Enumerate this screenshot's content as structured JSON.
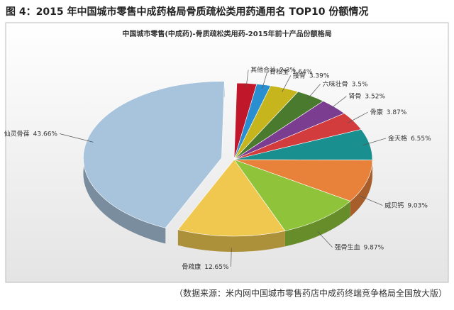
{
  "heading": "图 4：2015 年中国城市零售中成药格局骨质疏松类用药通用名 TOP10 份额情况",
  "source": "（数据来源：米内网中国城市零售药店中成药终端竞争格局全国放大版）",
  "chart_data": {
    "type": "pie",
    "title": "中国城市零售(中成药)-骨质疏松类用药-2015年前十产品份额格局",
    "categories": [
      "其他合计",
      "骨松宝",
      "接骨",
      "六味壮骨",
      "肾骨",
      "骨康",
      "金天格",
      "威贝钙",
      "强骨生血",
      "骨疏康",
      "仙灵骨葆"
    ],
    "values": [
      2.3,
      1.64,
      3.39,
      3.5,
      3.52,
      3.87,
      6.55,
      9.03,
      9.87,
      12.65,
      43.66
    ],
    "value_labels": [
      "2.3%",
      "1.64%",
      "3.39%",
      "3.5%",
      "3.52%",
      "3.87%",
      "6.55%",
      "9.03%",
      "9.87%",
      "12.65%",
      "43.66%"
    ],
    "colors": [
      "#c0172a",
      "#2a8fd0",
      "#c7b51d",
      "#4a7a2d",
      "#7a3d8f",
      "#d23c3c",
      "#1a8f8f",
      "#e8823a",
      "#8fc43a",
      "#f0c850",
      "#a8c4dc"
    ],
    "exploded": [
      10
    ]
  }
}
